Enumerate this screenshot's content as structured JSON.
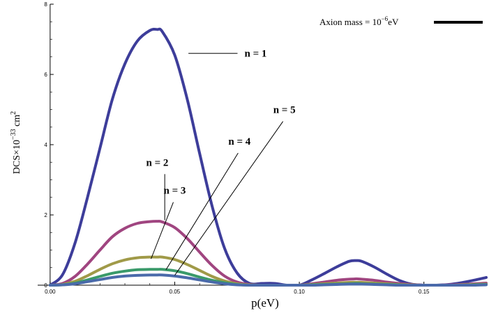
{
  "chart_data": {
    "type": "line",
    "title": "",
    "xlabel": "p(eV)",
    "ylabel_parts": {
      "base": "DCS×10",
      "exp": "−33",
      "unit": " cm",
      "unit_exp": "2"
    },
    "xlim": [
      -0.005,
      0.175
    ],
    "ylim": [
      0,
      8
    ],
    "x_ticks": [
      0.0,
      0.05,
      0.1,
      0.15
    ],
    "x_tick_labels": [
      "0.00",
      "0.05",
      "0.10",
      "0.15"
    ],
    "y_ticks": [
      0,
      2,
      4,
      6,
      8
    ],
    "y_tick_labels": [
      "0",
      "2",
      "4",
      "6",
      "8"
    ],
    "grid": false,
    "legend": {
      "position": "top-right",
      "text_base": "Axion mass = 10",
      "text_exp": "−6",
      "text_unit": "eV",
      "color": "#000000"
    },
    "x": [
      0.0,
      0.005,
      0.01,
      0.015,
      0.02,
      0.025,
      0.03,
      0.035,
      0.04,
      0.043,
      0.045,
      0.05,
      0.055,
      0.06,
      0.065,
      0.07,
      0.075,
      0.08,
      0.085,
      0.09,
      0.095,
      0.1,
      0.105,
      0.11,
      0.115,
      0.12,
      0.123,
      0.125,
      0.13,
      0.135,
      0.14,
      0.145,
      0.15,
      0.155,
      0.16,
      0.165,
      0.17,
      0.175
    ],
    "series": [
      {
        "name": "n = 1",
        "color": "#3d3d9a",
        "values": [
          0,
          0.3,
          1.2,
          2.5,
          3.9,
          5.3,
          6.3,
          6.95,
          7.25,
          7.28,
          7.22,
          6.55,
          5.3,
          3.75,
          2.25,
          1.05,
          0.35,
          0.05,
          0.05,
          0.05,
          0.0,
          0.0,
          0.15,
          0.33,
          0.52,
          0.68,
          0.7,
          0.68,
          0.52,
          0.32,
          0.14,
          0.03,
          0.0,
          0.0,
          0.02,
          0.07,
          0.14,
          0.22
        ]
      },
      {
        "name": "n = 2",
        "color": "#a04580",
        "values": [
          0,
          0.05,
          0.25,
          0.6,
          1.0,
          1.38,
          1.62,
          1.76,
          1.81,
          1.82,
          1.8,
          1.64,
          1.33,
          0.94,
          0.56,
          0.26,
          0.09,
          0.02,
          0.0,
          0.0,
          0.0,
          0.0,
          0.04,
          0.09,
          0.14,
          0.17,
          0.18,
          0.17,
          0.14,
          0.09,
          0.05,
          0.02,
          0.0,
          0.0,
          0.01,
          0.02,
          0.04,
          0.06
        ]
      },
      {
        "name": "n = 3",
        "color": "#a09a48",
        "values": [
          0,
          0.02,
          0.11,
          0.27,
          0.45,
          0.61,
          0.72,
          0.78,
          0.8,
          0.8,
          0.8,
          0.73,
          0.59,
          0.42,
          0.25,
          0.12,
          0.04,
          0.01,
          0.0,
          0.0,
          0.0,
          0.0,
          0.02,
          0.04,
          0.06,
          0.08,
          0.08,
          0.08,
          0.06,
          0.04,
          0.02,
          0.01,
          0.0,
          0.0,
          0.0,
          0.01,
          0.02,
          0.03
        ]
      },
      {
        "name": "n = 4",
        "color": "#3a9a6a",
        "values": [
          0,
          0.01,
          0.06,
          0.15,
          0.25,
          0.34,
          0.4,
          0.44,
          0.45,
          0.45,
          0.45,
          0.41,
          0.33,
          0.23,
          0.14,
          0.07,
          0.02,
          0.0,
          0.0,
          0.0,
          0.0,
          0.0,
          0.01,
          0.02,
          0.03,
          0.04,
          0.05,
          0.04,
          0.03,
          0.02,
          0.01,
          0.0,
          0.0,
          0.0,
          0.0,
          0.0,
          0.01,
          0.02
        ]
      },
      {
        "name": "n = 5",
        "color": "#4a6aaa",
        "values": [
          0,
          0.01,
          0.04,
          0.1,
          0.16,
          0.22,
          0.26,
          0.28,
          0.29,
          0.29,
          0.29,
          0.26,
          0.21,
          0.15,
          0.09,
          0.04,
          0.01,
          0.0,
          0.0,
          0.0,
          0.0,
          0.0,
          0.0,
          0.01,
          0.02,
          0.03,
          0.03,
          0.03,
          0.02,
          0.01,
          0.0,
          0.0,
          0.0,
          0.0,
          0.0,
          0.0,
          0.0,
          0.01
        ]
      }
    ],
    "annotations": [
      {
        "text": "n = 1",
        "series": "n = 1",
        "x": 0.0555,
        "y": 6.6,
        "label_x": 0.078,
        "label_y": 6.6
      },
      {
        "text": "n = 2",
        "series": "n = 2",
        "x": 0.046,
        "y": 1.85,
        "label_x": 0.043,
        "label_y": 3.4
      },
      {
        "text": "n = 3",
        "series": "n = 3",
        "x": 0.0405,
        "y": 0.75,
        "label_x": 0.05,
        "label_y": 2.6
      },
      {
        "text": "n = 4",
        "series": "n = 4",
        "x": 0.0465,
        "y": 0.44,
        "label_x": 0.076,
        "label_y": 4.0
      },
      {
        "text": "n = 5",
        "series": "n = 5",
        "x": 0.05,
        "y": 0.28,
        "label_x": 0.094,
        "label_y": 4.9
      }
    ]
  }
}
